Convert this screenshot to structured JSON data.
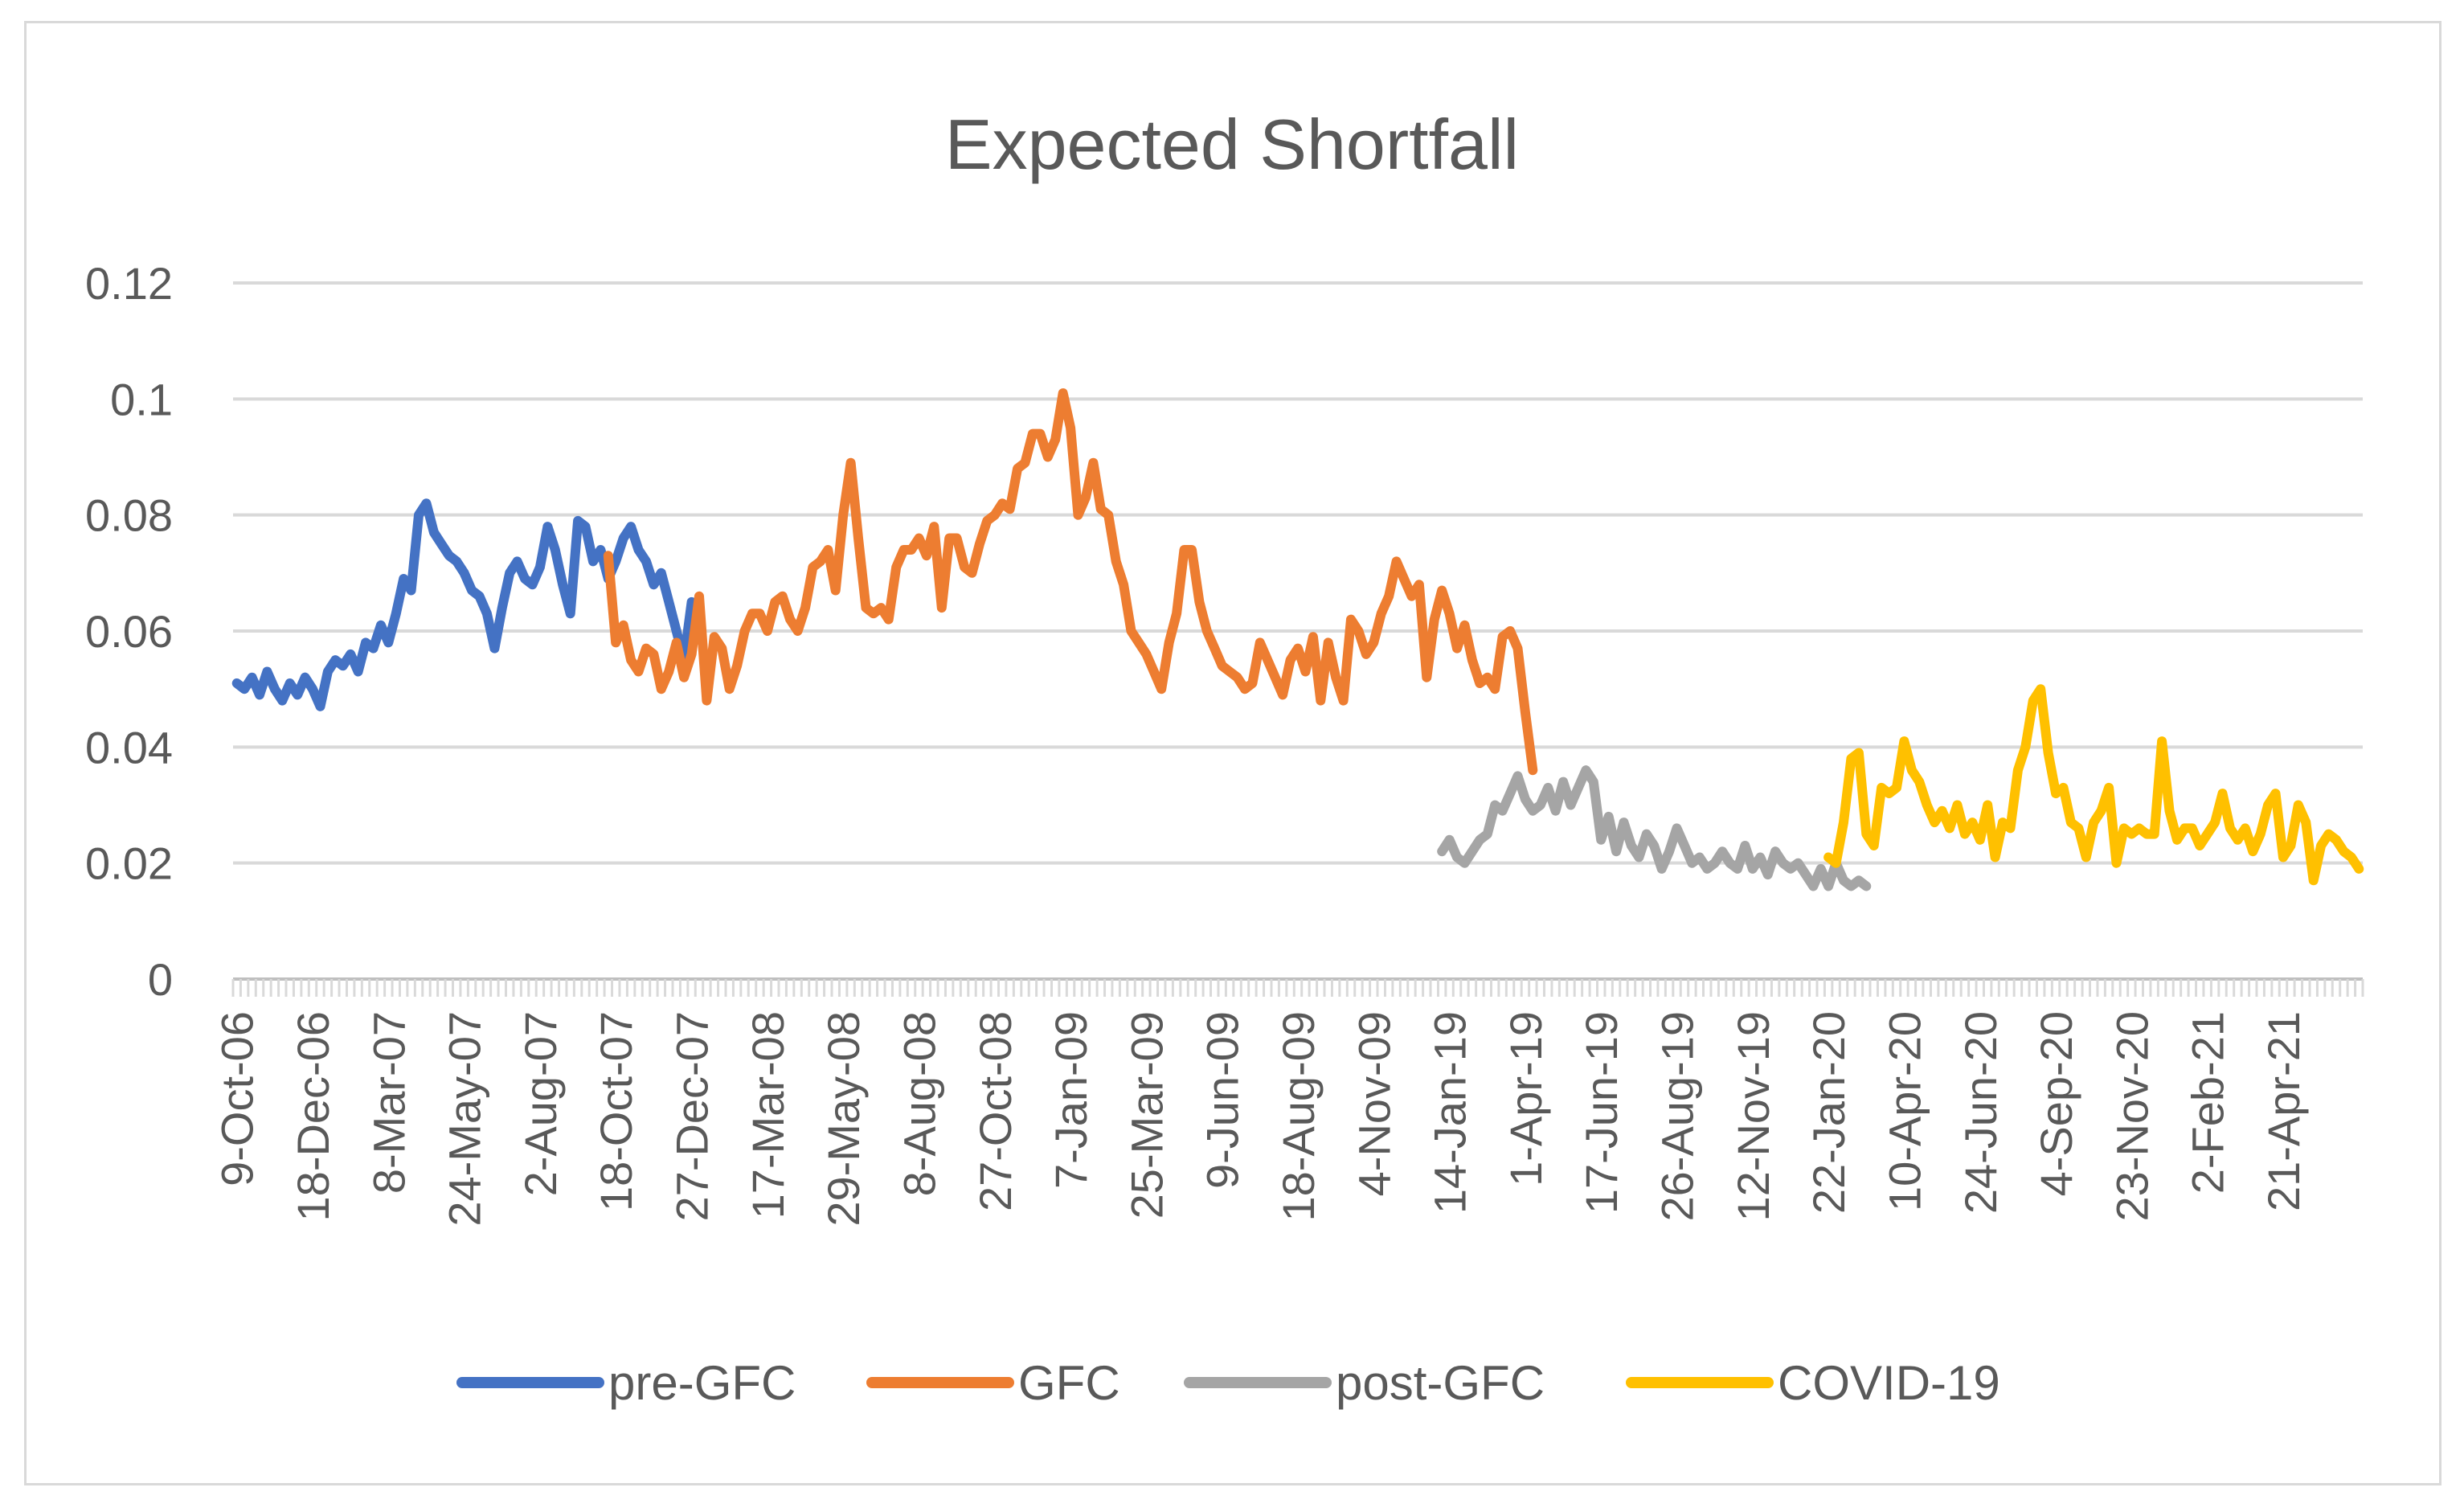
{
  "chart_data": {
    "type": "line",
    "title": "Expected Shortfall",
    "xlabel": "",
    "ylabel": "",
    "ylim": [
      0,
      0.12
    ],
    "yticks": [
      "0",
      "0.02",
      "0.04",
      "0.06",
      "0.08",
      "0.1",
      "0.12"
    ],
    "ytick_values": [
      0,
      0.02,
      0.04,
      0.06,
      0.08,
      0.1,
      0.12
    ],
    "grid": true,
    "legend_position": "bottom",
    "x_tick_labels": [
      {
        "label": "9-Oct-06",
        "index": 0
      },
      {
        "label": "18-Dec-06",
        "index": 10
      },
      {
        "label": "8-Mar-07",
        "index": 20
      },
      {
        "label": "24-May-07",
        "index": 30
      },
      {
        "label": "2-Aug-07",
        "index": 40
      },
      {
        "label": "18-Oct-07",
        "index": 50
      },
      {
        "label": "27-Dec-07",
        "index": 60
      },
      {
        "label": "17-Mar-08",
        "index": 70
      },
      {
        "label": "29-May-08",
        "index": 80
      },
      {
        "label": "8-Aug-08",
        "index": 90
      },
      {
        "label": "27-Oct-08",
        "index": 100
      },
      {
        "label": "7-Jan-09",
        "index": 110
      },
      {
        "label": "25-Mar-09",
        "index": 120
      },
      {
        "label": "9-Jun-09",
        "index": 130
      },
      {
        "label": "18-Aug-09",
        "index": 140
      },
      {
        "label": "4-Nov-09",
        "index": 150
      },
      {
        "label": "14-Jan-19",
        "index": 160
      },
      {
        "label": "1-Apr-19",
        "index": 170
      },
      {
        "label": "17-Jun-19",
        "index": 180
      },
      {
        "label": "26-Aug-19",
        "index": 190
      },
      {
        "label": "12-Nov-19",
        "index": 200
      },
      {
        "label": "22-Jan-20",
        "index": 210
      },
      {
        "label": "10-Apr-20",
        "index": 220
      },
      {
        "label": "24-Jun-20",
        "index": 230
      },
      {
        "label": "4-Sep-20",
        "index": 240
      },
      {
        "label": "23-Nov-20",
        "index": 250
      },
      {
        "label": "2-Feb-21",
        "index": 260
      },
      {
        "label": "21-Apr-21",
        "index": 270
      }
    ],
    "x_total_points": 281,
    "series": [
      {
        "name": "pre-GFC",
        "color": "#4472c4",
        "start_index": 0,
        "values": [
          0.051,
          0.05,
          0.052,
          0.049,
          0.053,
          0.05,
          0.048,
          0.051,
          0.049,
          0.052,
          0.05,
          0.047,
          0.053,
          0.055,
          0.054,
          0.056,
          0.053,
          0.058,
          0.057,
          0.061,
          0.058,
          0.063,
          0.069,
          0.067,
          0.08,
          0.082,
          0.077,
          0.075,
          0.073,
          0.072,
          0.07,
          0.067,
          0.066,
          0.063,
          0.057,
          0.064,
          0.07,
          0.072,
          0.069,
          0.068,
          0.071,
          0.078,
          0.074,
          0.068,
          0.063,
          0.079,
          0.078,
          0.072,
          0.074,
          0.069,
          0.072,
          0.076,
          0.078,
          0.074,
          0.072,
          0.068,
          0.07,
          0.065,
          0.06,
          0.055,
          0.065
        ]
      },
      {
        "name": "GFC",
        "color": "#ed7d31",
        "start_index": 49,
        "values": [
          0.073,
          0.058,
          0.061,
          0.055,
          0.053,
          0.057,
          0.056,
          0.05,
          0.053,
          0.058,
          0.052,
          0.056,
          0.066,
          0.048,
          0.059,
          0.057,
          0.05,
          0.054,
          0.06,
          0.063,
          0.063,
          0.06,
          0.065,
          0.066,
          0.062,
          0.06,
          0.064,
          0.071,
          0.072,
          0.074,
          0.067,
          0.08,
          0.089,
          0.076,
          0.064,
          0.063,
          0.064,
          0.062,
          0.071,
          0.074,
          0.074,
          0.076,
          0.073,
          0.078,
          0.064,
          0.076,
          0.076,
          0.071,
          0.07,
          0.075,
          0.079,
          0.08,
          0.082,
          0.081,
          0.088,
          0.089,
          0.094,
          0.094,
          0.09,
          0.093,
          0.101,
          0.095,
          0.08,
          0.083,
          0.089,
          0.081,
          0.08,
          0.072,
          0.068,
          0.06,
          0.058,
          0.056,
          0.053,
          0.05,
          0.058,
          0.063,
          0.074,
          0.074,
          0.065,
          0.06,
          0.057,
          0.054,
          0.053,
          0.052,
          0.05,
          0.051,
          0.058,
          0.055,
          0.052,
          0.049,
          0.055,
          0.057,
          0.053,
          0.059,
          0.048,
          0.058,
          0.052,
          0.048,
          0.062,
          0.06,
          0.056,
          0.058,
          0.063,
          0.066,
          0.072,
          0.069,
          0.066,
          0.068,
          0.052,
          0.062,
          0.067,
          0.063,
          0.057,
          0.061,
          0.055,
          0.051,
          0.052,
          0.05,
          0.059,
          0.06,
          0.057,
          0.046,
          0.036
        ]
      },
      {
        "name": "post-GFC",
        "color": "#a5a5a5",
        "start_index": 159,
        "values": [
          0.022,
          0.024,
          0.021,
          0.02,
          0.022,
          0.024,
          0.025,
          0.03,
          0.029,
          0.032,
          0.035,
          0.031,
          0.029,
          0.03,
          0.033,
          0.029,
          0.034,
          0.03,
          0.033,
          0.036,
          0.034,
          0.024,
          0.028,
          0.022,
          0.027,
          0.023,
          0.021,
          0.025,
          0.023,
          0.019,
          0.022,
          0.026,
          0.023,
          0.02,
          0.021,
          0.019,
          0.02,
          0.022,
          0.02,
          0.019,
          0.023,
          0.019,
          0.021,
          0.018,
          0.022,
          0.02,
          0.019,
          0.02,
          0.018,
          0.016,
          0.019,
          0.016,
          0.02,
          0.017,
          0.016,
          0.017,
          0.016
        ]
      },
      {
        "name": "COVID-19",
        "color": "#ffc000",
        "start_index": 210,
        "values": [
          0.021,
          0.02,
          0.027,
          0.038,
          0.039,
          0.025,
          0.023,
          0.033,
          0.032,
          0.033,
          0.041,
          0.036,
          0.034,
          0.03,
          0.027,
          0.029,
          0.026,
          0.03,
          0.025,
          0.027,
          0.024,
          0.03,
          0.021,
          0.027,
          0.026,
          0.036,
          0.04,
          0.048,
          0.05,
          0.039,
          0.032,
          0.033,
          0.027,
          0.026,
          0.021,
          0.027,
          0.029,
          0.033,
          0.02,
          0.026,
          0.025,
          0.026,
          0.025,
          0.025,
          0.041,
          0.029,
          0.024,
          0.026,
          0.026,
          0.023,
          0.025,
          0.027,
          0.032,
          0.026,
          0.024,
          0.026,
          0.022,
          0.025,
          0.03,
          0.032,
          0.021,
          0.023,
          0.03,
          0.027,
          0.017,
          0.023,
          0.025,
          0.024,
          0.022,
          0.021,
          0.019
        ]
      }
    ]
  }
}
